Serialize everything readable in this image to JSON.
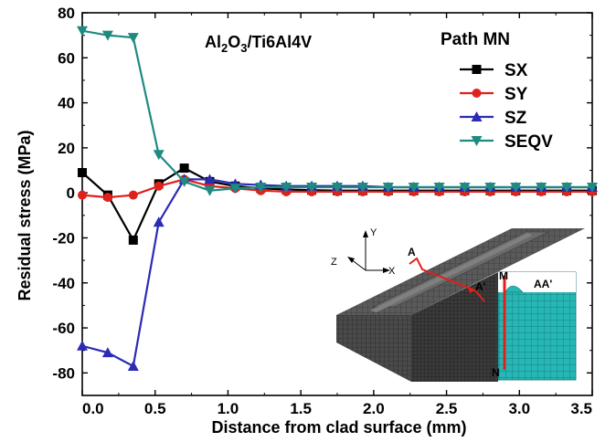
{
  "chart_data": {
    "type": "line",
    "title": "",
    "annotation": {
      "material_base": "Al",
      "sub1": "2",
      "mid": "O",
      "sub2": "3",
      "rest": "/Ti6Al4V"
    },
    "legend_title": "Path MN",
    "legend_position": "top-right",
    "xlabel": "Distance from clad surface (mm)",
    "ylabel": "Residual stress (MPa)",
    "xlim": [
      0,
      3.5
    ],
    "ylim": [
      -90,
      80
    ],
    "xticks": [
      "0.0",
      "0.5",
      "1.0",
      "1.5",
      "2.0",
      "2.5",
      "3.0",
      "3.5"
    ],
    "yticks": [
      "80",
      "60",
      "40",
      "20",
      "0",
      "-20",
      "-40",
      "-60",
      "-80"
    ],
    "x": [
      0.0,
      0.175,
      0.35,
      0.525,
      0.7,
      0.875,
      1.05,
      1.225,
      1.4,
      1.575,
      1.75,
      1.925,
      2.1,
      2.275,
      2.45,
      2.625,
      2.8,
      2.975,
      3.15,
      3.325,
      3.5
    ],
    "series": [
      {
        "name": "SX",
        "color": "#000000",
        "marker": "square",
        "values": [
          9,
          -1,
          -21,
          4,
          11,
          5,
          3,
          2,
          1.5,
          1.2,
          1,
          1,
          1,
          1,
          1,
          1,
          1,
          1,
          1,
          1,
          1
        ]
      },
      {
        "name": "SY",
        "color": "#e0201b",
        "marker": "circle",
        "values": [
          -1,
          -2,
          -1,
          3,
          6,
          3,
          2,
          1,
          0.5,
          0.5,
          0.5,
          0.5,
          0.5,
          0.5,
          0.5,
          0.5,
          0.5,
          0.5,
          0.5,
          0.5,
          0.5
        ]
      },
      {
        "name": "SZ",
        "color": "#2b2bb5",
        "marker": "triangle",
        "values": [
          -68,
          -71,
          -77,
          -13,
          6,
          6,
          4,
          3.5,
          3,
          3,
          3,
          3,
          2.5,
          2.5,
          2.5,
          2.5,
          2.5,
          2.5,
          2.5,
          2.5,
          2.5
        ]
      },
      {
        "name": "SEQV",
        "color": "#1e8a80",
        "marker": "triangle-down",
        "values": [
          72,
          70,
          69,
          17,
          5,
          1,
          2,
          2.5,
          2.5,
          2.5,
          2.5,
          2.5,
          2.5,
          2.5,
          2.5,
          2.5,
          2.5,
          2.5,
          2.5,
          2.5,
          2.5
        ]
      }
    ],
    "inset": {
      "axis_x": "X",
      "axis_y": "Y",
      "axis_z": "Z",
      "point_a": "A",
      "point_a2": "A'",
      "section_label": "AA'",
      "point_m": "M",
      "point_n": "N"
    }
  }
}
